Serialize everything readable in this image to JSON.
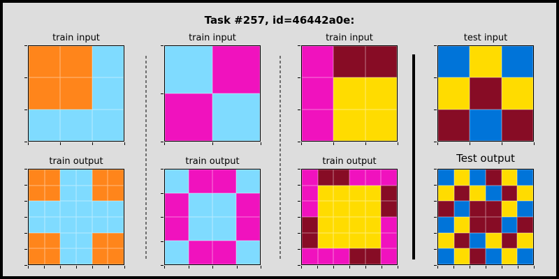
{
  "title": "Task #257, id=46442a0e:",
  "colors": {
    "O": "#ff851b",
    "L": "#7fdbff",
    "M": "#f012be",
    "R": "#870c25",
    "Y": "#ffdc00",
    "B": "#0074d9"
  },
  "panels": [
    {
      "label": "train input",
      "kind": "train-input",
      "grid": [
        "OOL",
        "OOL",
        "LLL"
      ]
    },
    {
      "label": "train input",
      "kind": "train-input",
      "grid": [
        "LM",
        "ML"
      ]
    },
    {
      "label": "train input",
      "kind": "train-input",
      "grid": [
        "MRR",
        "MYY",
        "MYY"
      ]
    },
    {
      "label": "test input",
      "kind": "test-input",
      "grid": [
        "BYB",
        "YRY",
        "RBR"
      ]
    },
    {
      "label": "train output",
      "kind": "train-output",
      "grid": [
        "OOLLOO",
        "OOLLOO",
        "LLLLLL",
        "LLLLLL",
        "OOLLOO",
        "OOLLOO"
      ]
    },
    {
      "label": "train output",
      "kind": "train-output",
      "grid": [
        "LMML",
        "MLLM",
        "MLLM",
        "LMML"
      ]
    },
    {
      "label": "train output",
      "kind": "train-output",
      "grid": [
        "MRRMMM",
        "MYYYYR",
        "MYYYYR",
        "RYYYYM",
        "RYYYYM",
        "MMMRRM"
      ]
    },
    {
      "label": "Test output",
      "kind": "test-output",
      "grid": [
        "BYBRYB",
        "YRYBRY",
        "RBRRYB",
        "BYRRBR",
        "YRBYRY",
        "BYRBYB"
      ]
    }
  ]
}
